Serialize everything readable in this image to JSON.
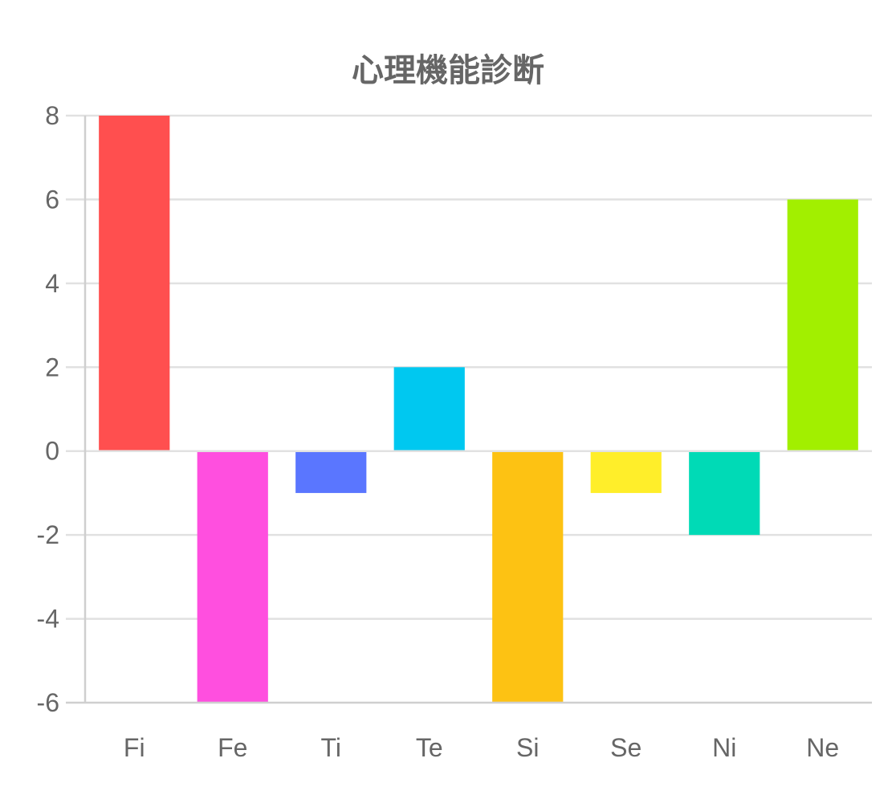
{
  "chart_data": {
    "type": "bar",
    "title": "心理機能診断",
    "xlabel": "",
    "ylabel": "",
    "categories": [
      "Fi",
      "Fe",
      "Ti",
      "Te",
      "Si",
      "Se",
      "Ni",
      "Ne"
    ],
    "values": [
      8,
      -6,
      -1,
      2,
      -6,
      -1,
      -2,
      6
    ],
    "bar_colors": [
      "#ff4f4f",
      "#ff4fdf",
      "#5a76ff",
      "#00c8f0",
      "#fdc213",
      "#ffee2a",
      "#00dab6",
      "#a2ef00"
    ],
    "ylim": [
      -6,
      8
    ],
    "yticks": [
      8,
      6,
      4,
      2,
      0,
      -2,
      -4,
      -6
    ],
    "grid": true,
    "legend": "none"
  },
  "colors": {
    "text": "#666666",
    "grid": "#e1e1e1",
    "axis": "#cfcfcf",
    "background": "#ffffff"
  }
}
